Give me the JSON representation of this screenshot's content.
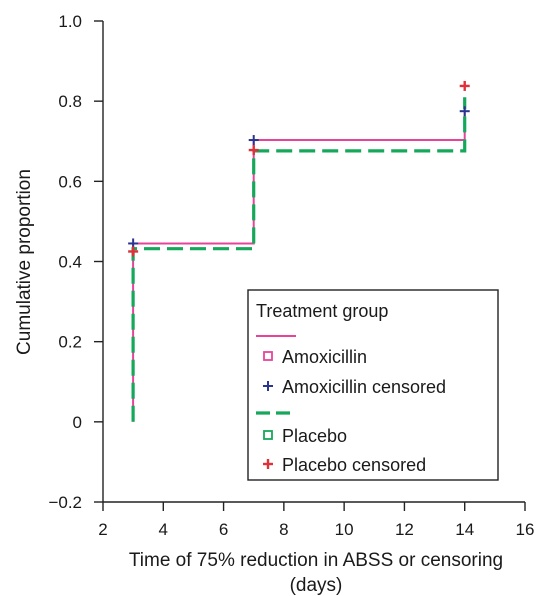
{
  "chart_data": {
    "type": "line",
    "step": true,
    "xlabel": "Time of 75% reduction in ABSS or censoring",
    "xlabel_line2": "(days)",
    "ylabel": "Cumulative proportion",
    "xlim": [
      2,
      16
    ],
    "ylim": [
      -0.2,
      1.0
    ],
    "xticks": [
      2,
      4,
      6,
      8,
      10,
      12,
      14,
      16
    ],
    "yticks": [
      -0.2,
      0,
      0.2,
      0.4,
      0.6,
      0.8,
      1.0
    ],
    "xtick_labels": [
      "2",
      "4",
      "6",
      "8",
      "10",
      "12",
      "14",
      "16"
    ],
    "ytick_labels": [
      "−0.2",
      "0",
      "0.2",
      "0.4",
      "0.6",
      "0.8",
      "1.0"
    ],
    "grid": false,
    "legend": {
      "title": "Treatment group",
      "placement": "bottom-right",
      "entries": [
        "Amoxicillin",
        "Amoxicillin censored",
        "Placebo",
        "Placebo censored"
      ]
    },
    "series": [
      {
        "name": "Amoxicillin",
        "color": "#e8439a",
        "line_style": "solid",
        "steps": [
          [
            3,
            0
          ],
          [
            3,
            0.445
          ],
          [
            7,
            0.445
          ],
          [
            7,
            0.703
          ],
          [
            14,
            0.703
          ],
          [
            14,
            0.775
          ]
        ]
      },
      {
        "name": "Amoxicillin censored",
        "color": "#2a3590",
        "marker": "plus",
        "points": [
          [
            3,
            0.445
          ],
          [
            7,
            0.703
          ],
          [
            14,
            0.775
          ]
        ]
      },
      {
        "name": "Placebo",
        "color": "#16a85a",
        "line_style": "dashed",
        "steps": [
          [
            3,
            0
          ],
          [
            3,
            0.432
          ],
          [
            7,
            0.432
          ],
          [
            7,
            0.676
          ],
          [
            14,
            0.676
          ],
          [
            14,
            0.81
          ]
        ]
      },
      {
        "name": "Placebo censored",
        "color": "#e0303a",
        "marker": "plus",
        "points": [
          [
            3,
            0.425
          ],
          [
            7,
            0.678
          ],
          [
            14,
            0.838
          ]
        ]
      }
    ]
  }
}
